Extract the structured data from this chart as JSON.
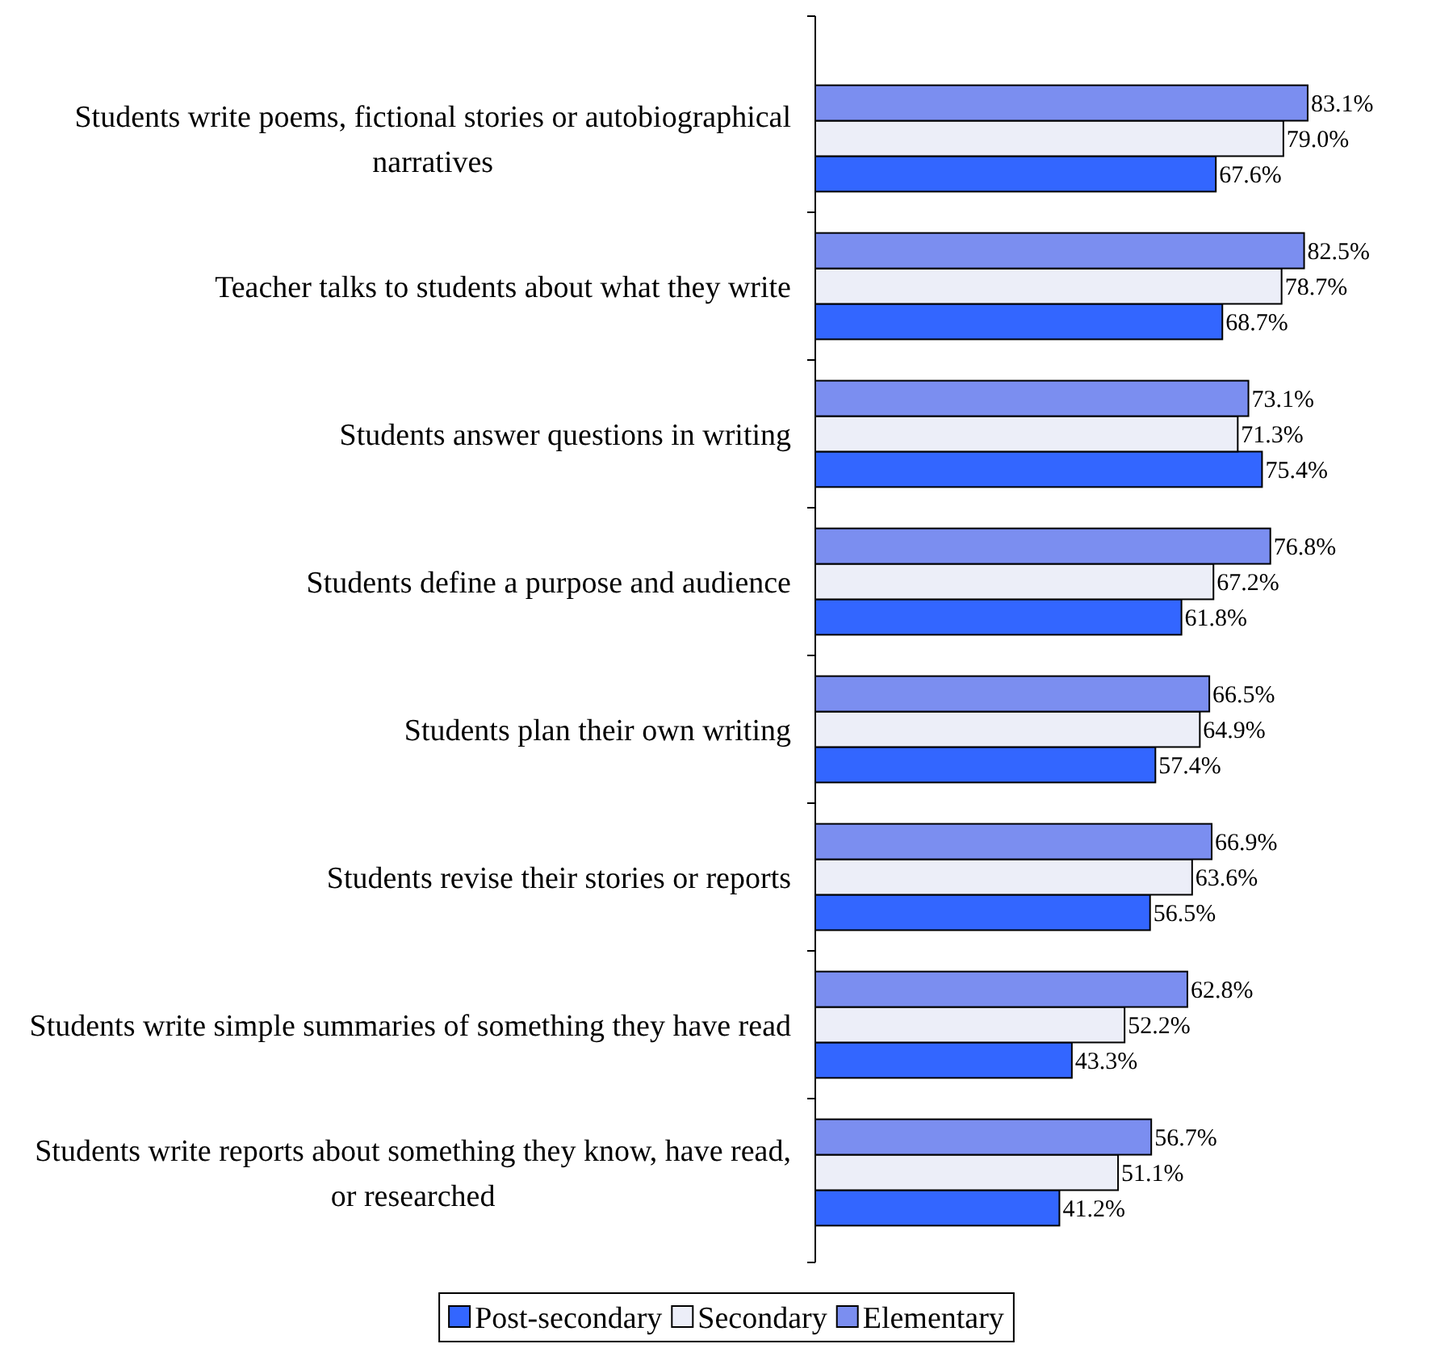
{
  "chart_data": {
    "type": "bar",
    "orientation": "horizontal",
    "legend": "bottom",
    "categories": [
      "Students write poems, fictional stories or autobiographical narratives",
      "Teacher talks to students about what they write",
      "Students answer questions in writing",
      "Students define a purpose and audience",
      "Students plan their own writing",
      "Students revise their stories or reports",
      "Students write simple summaries of something they have read",
      "Students write reports about something they know, have read, or researched"
    ],
    "series": [
      {
        "name": "Post-secondary",
        "color": "#3366ff",
        "values": [
          67.6,
          68.7,
          75.4,
          61.8,
          57.4,
          56.5,
          43.3,
          41.2
        ],
        "value_labels": [
          "67.6%",
          "68.7%",
          "75.4%",
          "61.8%",
          "57.4%",
          "56.5%",
          "43.3%",
          "41.2%"
        ]
      },
      {
        "name": "Secondary",
        "color": "#eceef8",
        "values": [
          79.0,
          78.7,
          71.3,
          67.2,
          64.9,
          63.6,
          52.2,
          51.1
        ],
        "value_labels": [
          "79.0%",
          "78.7%",
          "71.3%",
          "67.2%",
          "64.9%",
          "63.6%",
          "52.2%",
          "51.1%"
        ]
      },
      {
        "name": "Elementary",
        "color": "#7b8ef0",
        "values": [
          83.1,
          82.5,
          73.1,
          76.8,
          66.5,
          66.9,
          62.8,
          56.7
        ],
        "value_labels": [
          "83.1%",
          "82.5%",
          "73.1%",
          "76.8%",
          "66.5%",
          "66.9%",
          "62.8%",
          "56.7%"
        ]
      }
    ]
  }
}
